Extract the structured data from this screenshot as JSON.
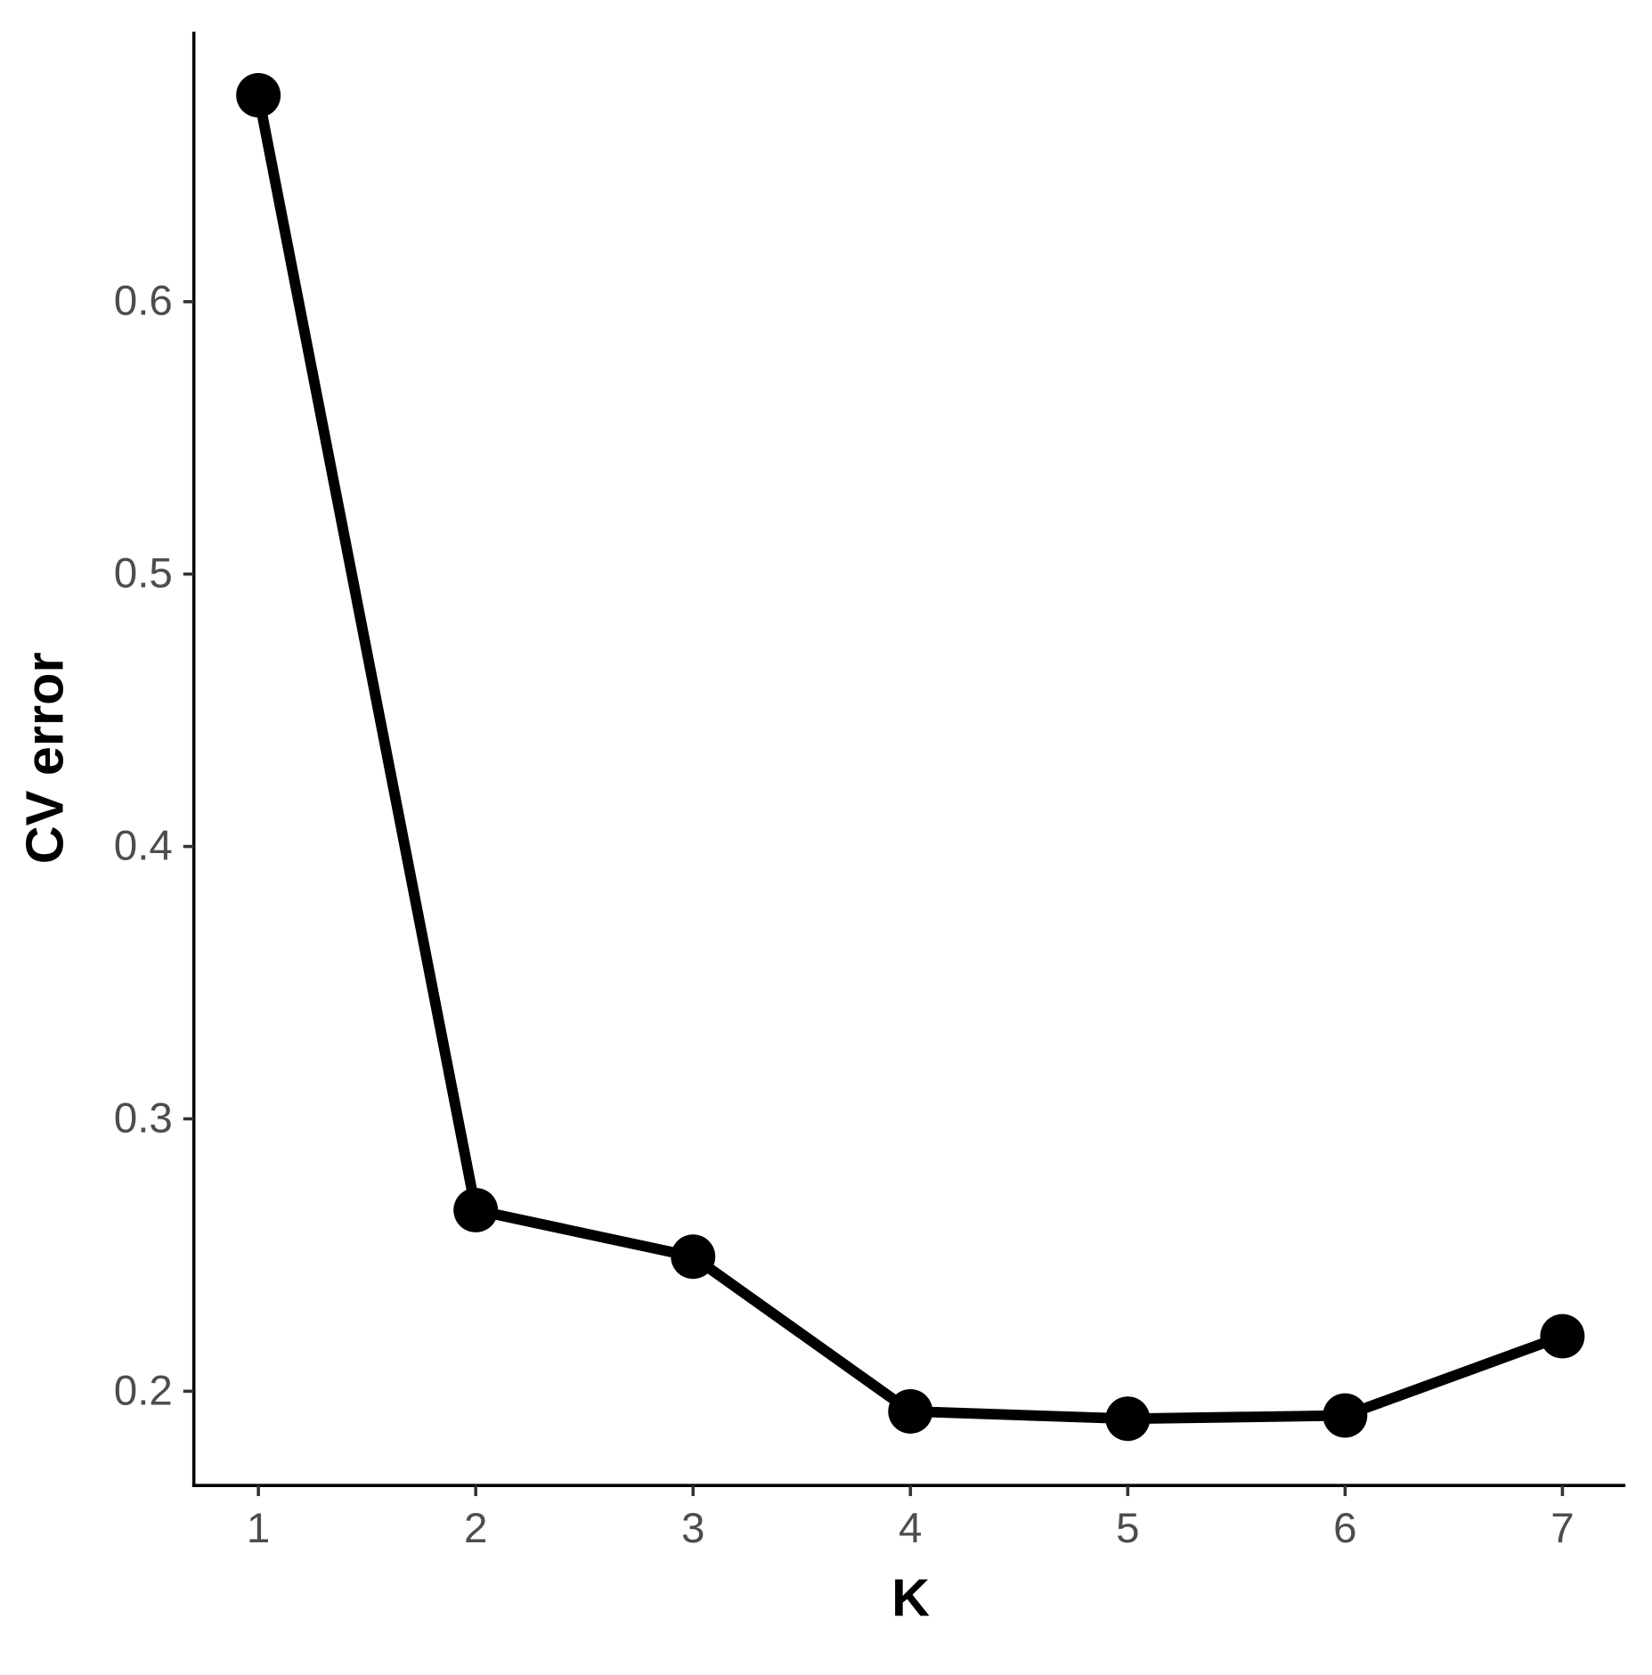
{
  "chart_data": {
    "type": "line",
    "x_label": "K",
    "y_label": "CV error",
    "x": [
      1,
      2,
      3,
      4,
      5,
      6,
      7
    ],
    "series": [
      {
        "color": "#000000",
        "values": [
          0.6758,
          0.2665,
          0.2494,
          0.1926,
          0.1899,
          0.1911,
          0.2202
        ]
      }
    ],
    "xlim": [
      0.703,
      7.29
    ],
    "xticks": [
      1,
      2,
      3,
      4,
      5,
      6,
      7
    ],
    "ylim": [
      0.1654,
      0.6991
    ],
    "yticks": [
      0.2,
      0.3,
      0.4,
      0.5,
      0.6
    ],
    "grid": false
  }
}
